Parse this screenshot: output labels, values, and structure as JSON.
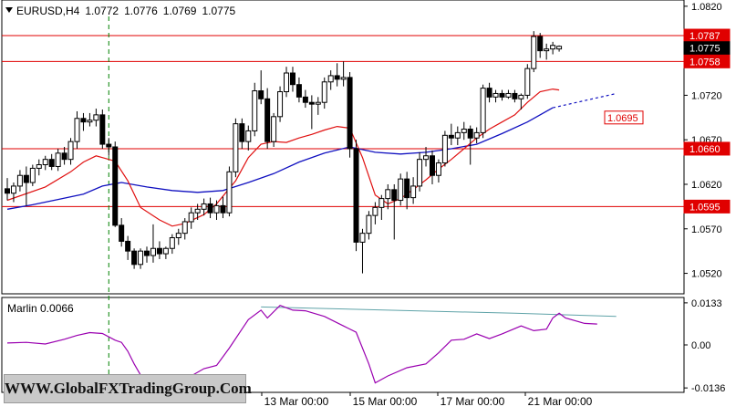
{
  "header": {
    "symbol": "EURUSD,H4",
    "open": "1.0772",
    "high": "1.0776",
    "low": "1.0769",
    "close": "1.0775"
  },
  "price_axis": [
    "1.0820",
    "1.0770",
    "1.0720",
    "1.0670",
    "1.0620",
    "1.0570",
    "1.0520"
  ],
  "level_labels": {
    "r1": "1.0787",
    "current": "1.0775",
    "r2": "1.0758",
    "mid": "1.0695",
    "s1": "1.0660",
    "s2": "1.0595"
  },
  "indicator": {
    "label": "Marlin 0.0066",
    "axis": [
      "0.0133",
      "0.00",
      "-0.0136"
    ]
  },
  "time_axis": [
    "13 Mar 00:00",
    "15 Mar 00:00",
    "17 Mar 00:00",
    "21 Mar 00:00"
  ],
  "watermark": "WWW.GlobalFXTradingGroup.Com",
  "colors": {
    "bull": "#ffffff",
    "bear": "#000000",
    "level": "#e00000",
    "fast_ma": "#e01010",
    "slow_ma": "#1010c0",
    "oscillator": "#9a00b0",
    "oscillator_signal": "#5fa3a8",
    "vline": "#008000"
  },
  "chart_data": [
    {
      "type": "candlestick",
      "title": "EURUSD,H4",
      "ylim": [
        1.0497,
        1.0827
      ],
      "x_labels": [
        "13 Mar 00:00",
        "15 Mar 00:00",
        "17 Mar 00:00",
        "21 Mar 00:00"
      ],
      "horizontal_levels": [
        1.0787,
        1.0758,
        1.066,
        1.0595
      ],
      "current_price": 1.0775,
      "target_label": 1.0695,
      "candles": [
        [
          1.0615,
          1.0627,
          1.0602,
          1.061
        ],
        [
          1.061,
          1.0622,
          1.06,
          1.0618
        ],
        [
          1.0618,
          1.0636,
          1.0612,
          1.063
        ],
        [
          1.063,
          1.064,
          1.0596,
          1.0622
        ],
        [
          1.0622,
          1.0642,
          1.0618,
          1.0638
        ],
        [
          1.0638,
          1.0648,
          1.063,
          1.0642
        ],
        [
          1.0642,
          1.0652,
          1.0636,
          1.0648
        ],
        [
          1.0648,
          1.0654,
          1.0636,
          1.064
        ],
        [
          1.064,
          1.066,
          1.0635,
          1.0655
        ],
        [
          1.0655,
          1.0662,
          1.0642,
          1.0648
        ],
        [
          1.0648,
          1.0672,
          1.0642,
          1.0668
        ],
        [
          1.0668,
          1.0702,
          1.066,
          1.0694
        ],
        [
          1.0694,
          1.07,
          1.068,
          1.069
        ],
        [
          1.069,
          1.07,
          1.0685,
          1.0692
        ],
        [
          1.0692,
          1.0705,
          1.0685,
          1.0698
        ],
        [
          1.0698,
          1.0704,
          1.066,
          1.0665
        ],
        [
          1.0665,
          1.0672,
          1.0652,
          1.0662
        ],
        [
          1.0662,
          1.0668,
          1.0572,
          1.0574
        ],
        [
          1.0574,
          1.0582,
          1.055,
          1.0556
        ],
        [
          1.0556,
          1.0562,
          1.0535,
          1.0545
        ],
        [
          1.0545,
          1.0548,
          1.0525,
          1.053
        ],
        [
          1.053,
          1.0548,
          1.0525,
          1.0545
        ],
        [
          1.0545,
          1.055,
          1.0532,
          1.054
        ],
        [
          1.054,
          1.0575,
          1.0532,
          1.0548
        ],
        [
          1.0548,
          1.0556,
          1.0536,
          1.0542
        ],
        [
          1.0542,
          1.055,
          1.0536,
          1.0548
        ],
        [
          1.0548,
          1.0564,
          1.0542,
          1.056
        ],
        [
          1.056,
          1.057,
          1.0552,
          1.0565
        ],
        [
          1.0565,
          1.0582,
          1.0558,
          1.0578
        ],
        [
          1.0578,
          1.0594,
          1.057,
          1.0588
        ],
        [
          1.0588,
          1.0598,
          1.058,
          1.0592
        ],
        [
          1.0592,
          1.0604,
          1.0585,
          1.0598
        ],
        [
          1.0598,
          1.0605,
          1.0582,
          1.0588
        ],
        [
          1.0588,
          1.0602,
          1.058,
          1.0596
        ],
        [
          1.0596,
          1.0606,
          1.0582,
          1.0588
        ],
        [
          1.0588,
          1.064,
          1.0584,
          1.0634
        ],
        [
          1.0634,
          1.0694,
          1.0628,
          1.0688
        ],
        [
          1.0688,
          1.0694,
          1.066,
          1.0668
        ],
        [
          1.0668,
          1.0686,
          1.0658,
          1.068
        ],
        [
          1.068,
          1.0734,
          1.0674,
          1.0725
        ],
        [
          1.0725,
          1.0748,
          1.071,
          1.0716
        ],
        [
          1.0716,
          1.0728,
          1.066,
          1.0668
        ],
        [
          1.0668,
          1.07,
          1.0662,
          1.0696
        ],
        [
          1.0696,
          1.073,
          1.069,
          1.0724
        ],
        [
          1.0724,
          1.0752,
          1.0718,
          1.0745
        ],
        [
          1.0745,
          1.0752,
          1.0724,
          1.0732
        ],
        [
          1.0732,
          1.074,
          1.0712,
          1.0718
        ],
        [
          1.0718,
          1.0726,
          1.0706,
          1.0712
        ],
        [
          1.0712,
          1.072,
          1.0682,
          1.071
        ],
        [
          1.071,
          1.0718,
          1.0698,
          1.0712
        ],
        [
          1.0712,
          1.074,
          1.0705,
          1.0735
        ],
        [
          1.0735,
          1.0748,
          1.0726,
          1.0742
        ],
        [
          1.0742,
          1.0756,
          1.073,
          1.0738
        ],
        [
          1.0738,
          1.0758,
          1.073,
          1.074
        ],
        [
          1.074,
          1.0746,
          1.065,
          1.066
        ],
        [
          1.066,
          1.067,
          1.0545,
          1.0555
        ],
        [
          1.0555,
          1.057,
          1.052,
          1.0565
        ],
        [
          1.0565,
          1.059,
          1.0558,
          1.0585
        ],
        [
          1.0585,
          1.06,
          1.0575,
          1.0594
        ],
        [
          1.0594,
          1.0608,
          1.058,
          1.0604
        ],
        [
          1.0604,
          1.062,
          1.0592,
          1.0614
        ],
        [
          1.0614,
          1.062,
          1.0558,
          1.0602
        ],
        [
          1.0602,
          1.0632,
          1.0596,
          1.0626
        ],
        [
          1.0626,
          1.0634,
          1.0592,
          1.0605
        ],
        [
          1.0605,
          1.0628,
          1.0598,
          1.0618
        ],
        [
          1.0618,
          1.0656,
          1.0612,
          1.0648
        ],
        [
          1.0648,
          1.0662,
          1.064,
          1.0652
        ],
        [
          1.0652,
          1.0658,
          1.062,
          1.063
        ],
        [
          1.063,
          1.0648,
          1.0622,
          1.0644
        ],
        [
          1.0644,
          1.068,
          1.064,
          1.0675
        ],
        [
          1.0675,
          1.0688,
          1.0664,
          1.0672
        ],
        [
          1.0672,
          1.0685,
          1.0664,
          1.0678
        ],
        [
          1.0678,
          1.069,
          1.067,
          1.0682
        ],
        [
          1.0682,
          1.0686,
          1.0642,
          1.0672
        ],
        [
          1.0672,
          1.0684,
          1.0666,
          1.0678
        ],
        [
          1.0678,
          1.0732,
          1.0672,
          1.0728
        ],
        [
          1.0728,
          1.0734,
          1.0712,
          1.0718
        ],
        [
          1.0718,
          1.0726,
          1.0712,
          1.0722
        ],
        [
          1.0722,
          1.0726,
          1.0714,
          1.0718
        ],
        [
          1.0718,
          1.0726,
          1.0716,
          1.0722
        ],
        [
          1.0722,
          1.0726,
          1.0712,
          1.0716
        ],
        [
          1.0716,
          1.0722,
          1.0704,
          1.072
        ],
        [
          1.072,
          1.0755,
          1.0716,
          1.075
        ],
        [
          1.075,
          1.0792,
          1.0746,
          1.0786
        ],
        [
          1.0786,
          1.079,
          1.0762,
          1.077
        ],
        [
          1.077,
          1.0778,
          1.076,
          1.0772
        ],
        [
          1.0772,
          1.078,
          1.0766,
          1.0776
        ],
        [
          1.0772,
          1.0776,
          1.0769,
          1.0775
        ]
      ],
      "fast_ma": [
        [
          0,
          1.0602
        ],
        [
          6,
          1.0617
        ],
        [
          10,
          1.0634
        ],
        [
          12,
          1.0645
        ],
        [
          14,
          1.0652
        ],
        [
          17,
          1.0646
        ],
        [
          19,
          1.0624
        ],
        [
          21,
          1.0594
        ],
        [
          24,
          1.058
        ],
        [
          26,
          1.0573
        ],
        [
          28,
          1.0576
        ],
        [
          31,
          1.0586
        ],
        [
          33,
          1.0598
        ],
        [
          36,
          1.0624
        ],
        [
          38,
          1.065
        ],
        [
          40,
          1.0665
        ],
        [
          42,
          1.0668
        ],
        [
          44,
          1.0667
        ],
        [
          46,
          1.0672
        ],
        [
          48,
          1.0676
        ],
        [
          50,
          1.0681
        ],
        [
          52,
          1.0685
        ],
        [
          54,
          1.0683
        ],
        [
          56,
          1.065
        ],
        [
          58,
          1.0608
        ],
        [
          60,
          1.0598
        ],
        [
          62,
          1.0604
        ],
        [
          64,
          1.0614
        ],
        [
          66,
          1.0625
        ],
        [
          68,
          1.0637
        ],
        [
          70,
          1.0648
        ],
        [
          72,
          1.066
        ],
        [
          74,
          1.0672
        ],
        [
          76,
          1.0682
        ],
        [
          78,
          1.069
        ],
        [
          80,
          1.0698
        ],
        [
          82,
          1.0712
        ],
        [
          84,
          1.0724
        ],
        [
          86,
          1.0727
        ],
        [
          87,
          1.0726
        ]
      ],
      "slow_ma": [
        [
          0,
          1.0592
        ],
        [
          4,
          1.0597
        ],
        [
          8,
          1.0603
        ],
        [
          12,
          1.0609
        ],
        [
          15,
          1.0618
        ],
        [
          18,
          1.0622
        ],
        [
          22,
          1.0617
        ],
        [
          26,
          1.0613
        ],
        [
          30,
          1.0611
        ],
        [
          34,
          1.0613
        ],
        [
          38,
          1.0622
        ],
        [
          42,
          1.0632
        ],
        [
          46,
          1.0645
        ],
        [
          50,
          1.0655
        ],
        [
          54,
          1.0662
        ],
        [
          58,
          1.0656
        ],
        [
          62,
          1.0654
        ],
        [
          66,
          1.0656
        ],
        [
          70,
          1.066
        ],
        [
          74,
          1.0665
        ],
        [
          78,
          1.0677
        ],
        [
          82,
          1.069
        ],
        [
          86,
          1.0706
        ]
      ],
      "slow_ma_projection": [
        [
          86,
          1.0706
        ],
        [
          96,
          1.0722
        ]
      ]
    },
    {
      "type": "line",
      "title": "Marlin 0.0066",
      "ylim": [
        -0.015,
        0.015
      ],
      "series": [
        {
          "values": [
            [
              0,
              0.0006
            ],
            [
              3,
              0.0008
            ],
            [
              6,
              0.0003
            ],
            [
              9,
              0.0018
            ],
            [
              11,
              0.003
            ],
            [
              13,
              0.0039
            ],
            [
              15,
              0.0036
            ],
            [
              17,
              0.0015
            ],
            [
              18,
              0.0008
            ],
            [
              19,
              -0.002
            ],
            [
              20,
              -0.006
            ],
            [
              21,
              -0.0095
            ],
            [
              22,
              -0.0128
            ],
            [
              25,
              -0.0125
            ],
            [
              27,
              -0.0115
            ],
            [
              29,
              -0.0098
            ],
            [
              31,
              -0.0075
            ],
            [
              33,
              -0.0065
            ],
            [
              35,
              -0.001
            ],
            [
              37,
              0.005
            ],
            [
              38,
              0.008
            ],
            [
              40,
              0.011
            ],
            [
              41,
              0.0085
            ],
            [
              43,
              0.0125
            ],
            [
              45,
              0.011
            ],
            [
              47,
              0.0108
            ],
            [
              50,
              0.009
            ],
            [
              53,
              0.006
            ],
            [
              55,
              0.004
            ],
            [
              57,
              -0.006
            ],
            [
              58,
              -0.012
            ],
            [
              60,
              -0.0098
            ],
            [
              63,
              -0.0072
            ],
            [
              66,
              -0.006
            ],
            [
              68,
              -0.0025
            ],
            [
              70,
              0.0015
            ],
            [
              72,
              0.0018
            ],
            [
              74,
              0.0035
            ],
            [
              76,
              0.002
            ],
            [
              78,
              0.0035
            ],
            [
              81,
              0.006
            ],
            [
              83,
              0.0045
            ],
            [
              85,
              0.005
            ],
            [
              86,
              0.0085
            ],
            [
              87,
              0.01
            ],
            [
              88,
              0.0085
            ],
            [
              91,
              0.0068
            ],
            [
              93,
              0.0066
            ]
          ]
        },
        {
          "values": [
            [
              40,
              0.012
            ],
            [
              60,
              0.011
            ],
            [
              80,
              0.01
            ],
            [
              96,
              0.009
            ]
          ]
        }
      ],
      "axis_ticks": [
        0.0133,
        0.0,
        -0.0136
      ]
    }
  ]
}
